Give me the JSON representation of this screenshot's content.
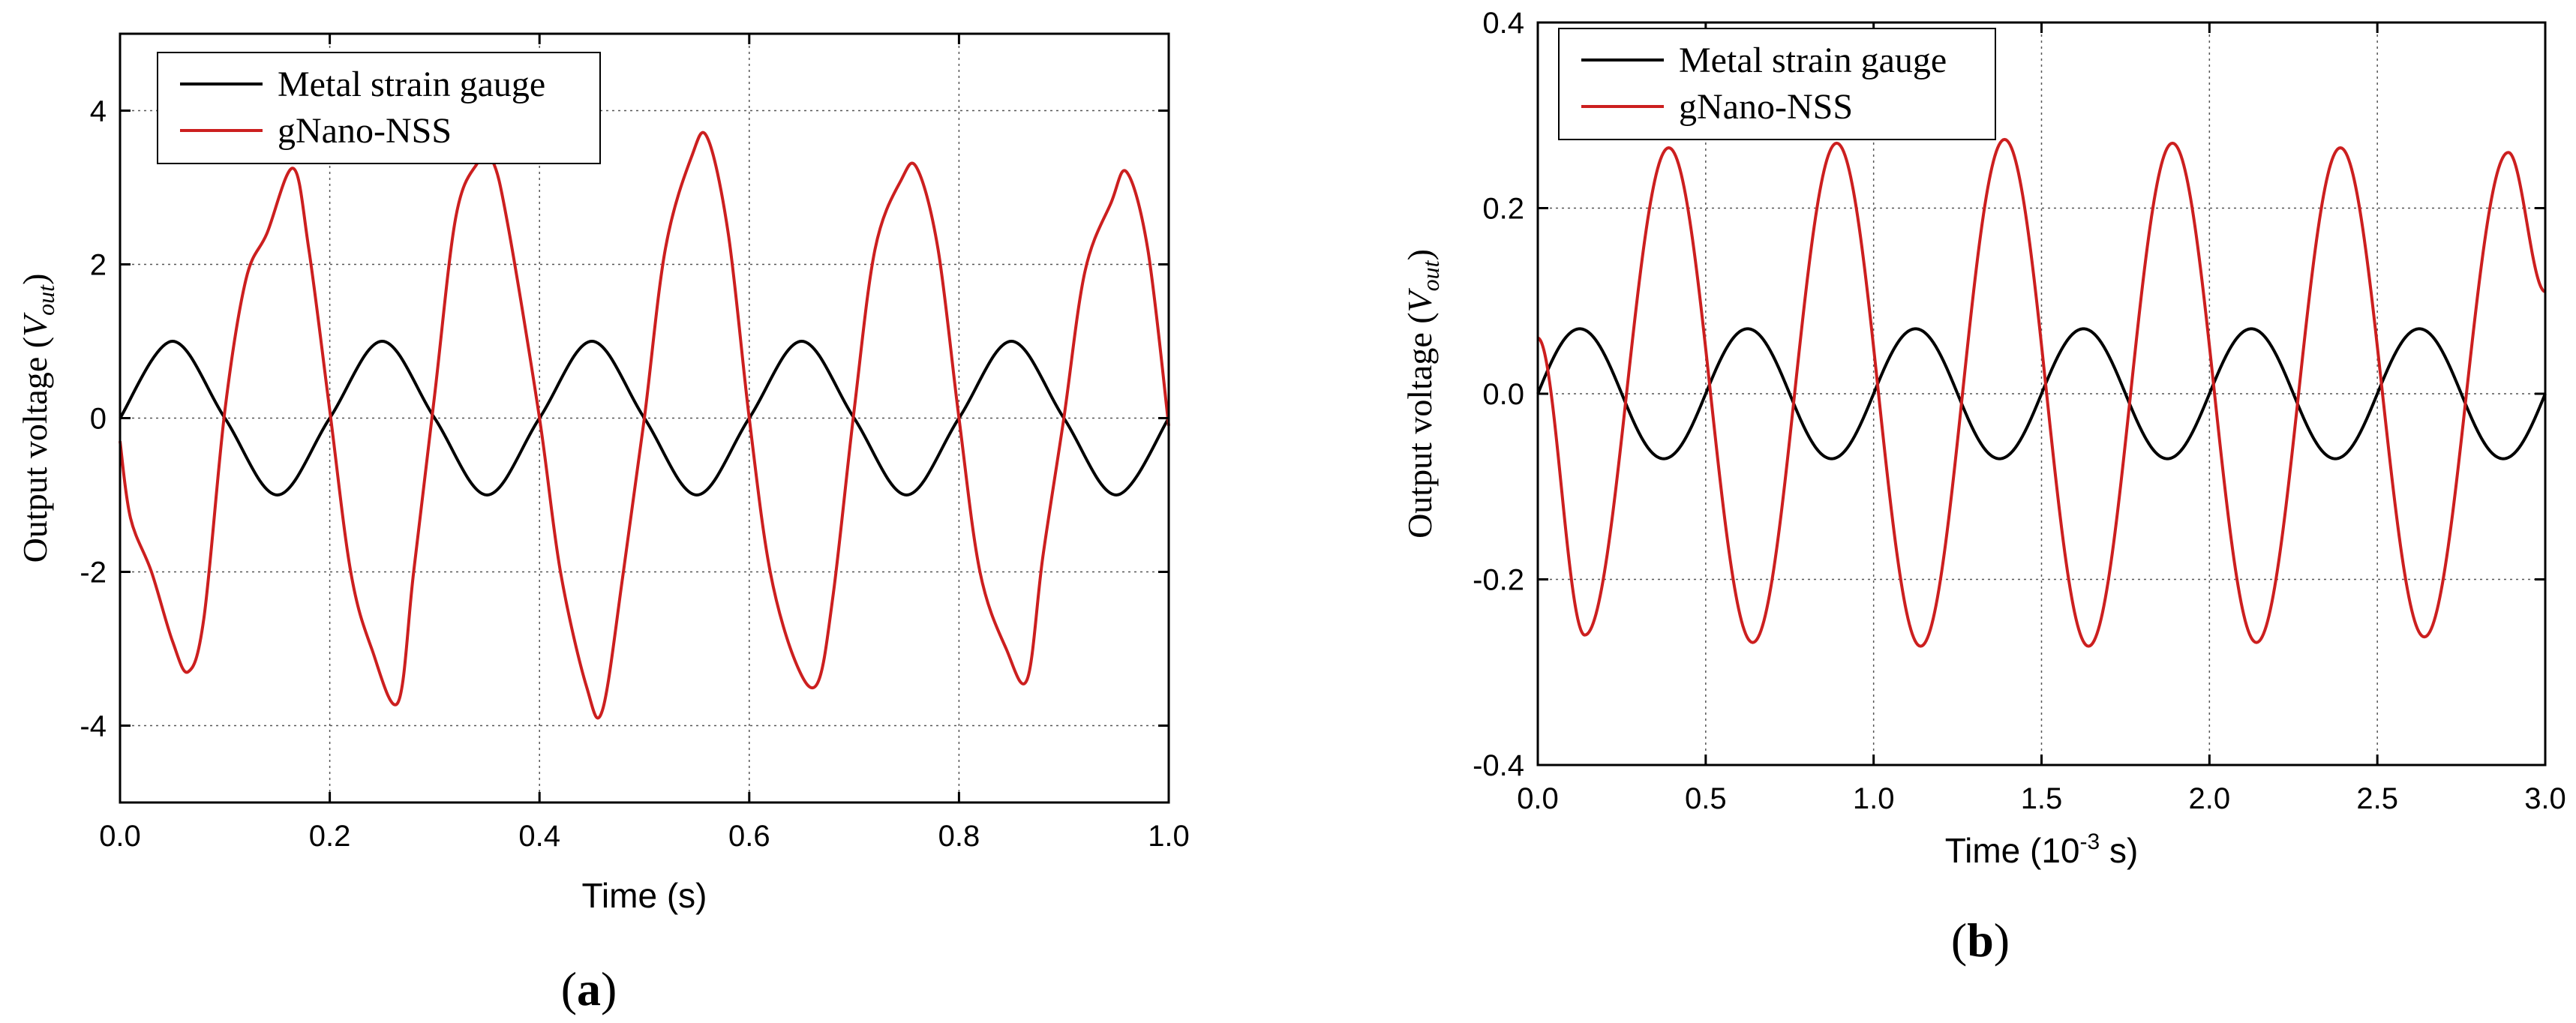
{
  "chart_data": [
    {
      "type": "line",
      "panel_label": "a",
      "xlabel": "Time (s)",
      "ylabel_prefix": "Output voltage (",
      "ylabel_symbol": "V",
      "ylabel_subscript": "out",
      "ylabel_suffix": ")",
      "xlim": [
        0.0,
        1.0
      ],
      "ylim": [
        -5,
        5
      ],
      "xticks": [
        0.0,
        0.2,
        0.4,
        0.6,
        0.8,
        1.0
      ],
      "xtick_labels": [
        "0.0",
        "0.2",
        "0.4",
        "0.6",
        "0.8",
        "1.0"
      ],
      "yticks": [
        -4,
        -2,
        0,
        2,
        4
      ],
      "ytick_labels": [
        "-4",
        "-2",
        "0",
        "2",
        "4"
      ],
      "grid": true,
      "legend_position": "top-left",
      "series": [
        {
          "name": "Metal strain gauge",
          "color": "#000000",
          "x": [
            0.0,
            0.05,
            0.1,
            0.15,
            0.2,
            0.25,
            0.3,
            0.35,
            0.4,
            0.45,
            0.5,
            0.55,
            0.6,
            0.65,
            0.7,
            0.75,
            0.8,
            0.85,
            0.9,
            0.95,
            1.0
          ],
          "y": [
            0.0,
            1.0,
            0.0,
            -1.0,
            0.0,
            1.0,
            0.0,
            -1.0,
            0.0,
            1.0,
            0.0,
            -1.0,
            0.0,
            1.0,
            0.0,
            -1.0,
            0.0,
            1.0,
            0.0,
            -1.0,
            0.0
          ]
        },
        {
          "name": "gNano-NSS",
          "color": "#cc1f1f",
          "x": [
            0.0,
            0.01,
            0.03,
            0.05,
            0.065,
            0.08,
            0.1,
            0.12,
            0.14,
            0.165,
            0.18,
            0.2,
            0.22,
            0.24,
            0.265,
            0.28,
            0.3,
            0.32,
            0.34,
            0.355,
            0.37,
            0.4,
            0.42,
            0.445,
            0.46,
            0.48,
            0.5,
            0.52,
            0.545,
            0.56,
            0.58,
            0.6,
            0.62,
            0.645,
            0.665,
            0.68,
            0.7,
            0.72,
            0.745,
            0.76,
            0.78,
            0.8,
            0.82,
            0.845,
            0.865,
            0.88,
            0.9,
            0.92,
            0.945,
            0.96,
            0.98,
            1.0
          ],
          "y": [
            -0.3,
            -1.3,
            -2.0,
            -2.9,
            -3.3,
            -2.6,
            0.1,
            1.8,
            2.4,
            3.25,
            2.2,
            0.1,
            -2.0,
            -3.0,
            -3.7,
            -2.0,
            0.3,
            2.6,
            3.3,
            3.35,
            2.5,
            0.0,
            -2.0,
            -3.5,
            -3.8,
            -2.0,
            0.0,
            2.2,
            3.4,
            3.65,
            2.4,
            0.0,
            -2.0,
            -3.2,
            -3.45,
            -2.3,
            0.1,
            2.2,
            3.1,
            3.25,
            2.2,
            0.0,
            -2.0,
            -3.0,
            -3.4,
            -1.8,
            0.0,
            1.9,
            2.8,
            3.2,
            2.2,
            -0.1
          ]
        }
      ]
    },
    {
      "type": "line",
      "panel_label": "b",
      "xlabel_prefix": "Time (10",
      "xlabel_sup": "-3",
      "xlabel_suffix": " s)",
      "ylabel_prefix": "Output voltage (",
      "ylabel_symbol": "V",
      "ylabel_subscript": "out",
      "ylabel_suffix": ")",
      "xlim": [
        0.0,
        3.0
      ],
      "ylim": [
        -0.4,
        0.4
      ],
      "xticks": [
        0.0,
        0.5,
        1.0,
        1.5,
        2.0,
        2.5,
        3.0
      ],
      "xtick_labels": [
        "0.0",
        "0.5",
        "1.0",
        "1.5",
        "2.0",
        "2.5",
        "3.0"
      ],
      "yticks": [
        -0.4,
        -0.2,
        0.0,
        0.2,
        0.4
      ],
      "ytick_labels": [
        "-0.4",
        "-0.2",
        "0.0",
        "0.2",
        "0.4"
      ],
      "grid": true,
      "legend_position": "top-left",
      "series": [
        {
          "name": "Metal strain gauge",
          "color": "#000000",
          "amplitude": 0.07,
          "period": 0.5,
          "phase_start": 0.0
        },
        {
          "name": "gNano-NSS",
          "color": "#cc1f1f",
          "amplitudes": [
            0.26,
            0.265,
            0.268,
            0.27,
            0.272,
            0.274,
            0.272,
            0.27,
            0.268,
            0.265,
            0.262,
            0.26
          ],
          "period": 0.5,
          "peak_x": [
            0.39,
            0.89,
            1.39,
            1.89,
            2.39,
            2.89
          ],
          "trough_x": [
            0.14,
            0.64,
            1.14,
            1.64,
            2.14,
            2.64
          ],
          "y_at_start": 0.06,
          "y_at_end": 0.11
        }
      ]
    }
  ]
}
